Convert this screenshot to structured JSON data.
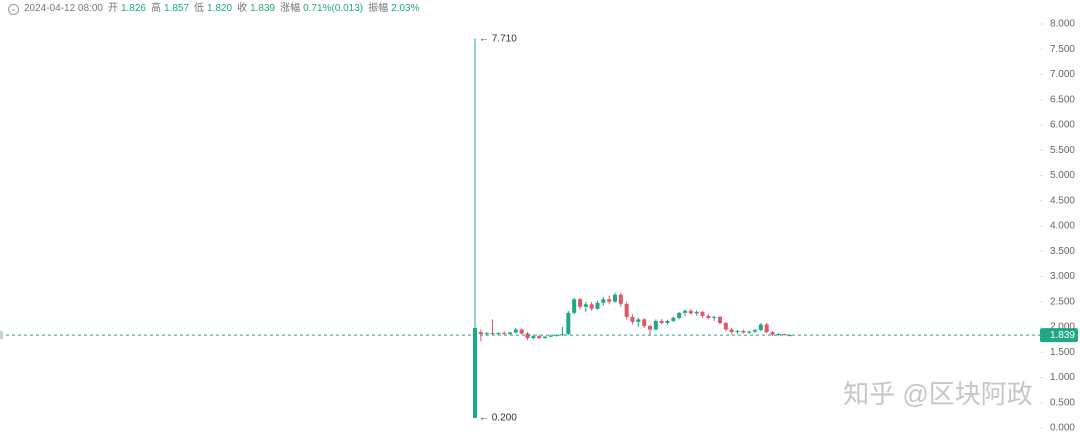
{
  "header": {
    "time": "2024-04-12 08:00",
    "fields": [
      {
        "label": "开",
        "value": "1.826"
      },
      {
        "label": "高",
        "value": "1.857"
      },
      {
        "label": "低",
        "value": "1.820"
      },
      {
        "label": "收",
        "value": "1.839"
      },
      {
        "label": "涨幅",
        "value": "0.71%(0.013)"
      },
      {
        "label": "振幅",
        "value": "2.03%"
      }
    ]
  },
  "watermark": "知乎 @区块阿政",
  "chart_data": {
    "type": "candlestick",
    "up_color": "#1fa886",
    "down_color": "#e2566a",
    "open": [
      0.2,
      1.9,
      1.86,
      1.88,
      1.87,
      1.88,
      1.86,
      1.89,
      1.95,
      1.87,
      1.78,
      1.82,
      1.78,
      1.81,
      1.83,
      1.84,
      1.86,
      2.28,
      2.55,
      2.4,
      2.45,
      2.36,
      2.48,
      2.55,
      2.5,
      2.64,
      2.46,
      2.2,
      2.1,
      2.15,
      2.02,
      1.95,
      2.12,
      2.08,
      2.12,
      2.18,
      2.28,
      2.32,
      2.27,
      2.3,
      2.22,
      2.18,
      2.2,
      2.08,
      1.95,
      1.9,
      1.92,
      1.89,
      1.91,
      1.94,
      2.05,
      1.9,
      1.85,
      1.86,
      1.826
    ],
    "high": [
      7.71,
      1.95,
      1.9,
      2.15,
      1.9,
      1.92,
      1.9,
      1.98,
      1.97,
      1.9,
      1.85,
      1.84,
      1.82,
      1.85,
      1.86,
      2.0,
      2.32,
      2.58,
      2.58,
      2.5,
      2.5,
      2.52,
      2.6,
      2.62,
      2.68,
      2.68,
      2.5,
      2.25,
      2.18,
      2.18,
      2.05,
      2.15,
      2.16,
      2.14,
      2.2,
      2.3,
      2.35,
      2.36,
      2.33,
      2.32,
      2.26,
      2.22,
      2.22,
      2.1,
      1.98,
      1.94,
      1.95,
      1.93,
      1.96,
      2.08,
      2.08,
      1.92,
      1.88,
      1.87,
      1.857
    ],
    "low": [
      0.2,
      1.72,
      1.82,
      1.85,
      1.84,
      1.85,
      1.84,
      1.87,
      1.85,
      1.74,
      1.75,
      1.76,
      1.77,
      1.79,
      1.81,
      1.82,
      1.84,
      2.25,
      2.35,
      2.3,
      2.32,
      2.34,
      2.42,
      2.45,
      2.48,
      2.4,
      2.15,
      2.05,
      2.0,
      1.98,
      1.85,
      1.93,
      2.05,
      2.05,
      2.1,
      2.15,
      2.22,
      2.24,
      2.22,
      2.18,
      2.15,
      2.12,
      2.05,
      1.92,
      1.86,
      1.86,
      1.87,
      1.86,
      1.88,
      1.92,
      1.88,
      1.82,
      1.82,
      1.83,
      1.82
    ],
    "close": [
      1.98,
      1.86,
      1.88,
      1.87,
      1.88,
      1.86,
      1.89,
      1.95,
      1.87,
      1.78,
      1.82,
      1.78,
      1.81,
      1.83,
      1.84,
      1.86,
      2.28,
      2.55,
      2.4,
      2.45,
      2.36,
      2.48,
      2.55,
      2.5,
      2.64,
      2.46,
      2.2,
      2.1,
      2.15,
      2.02,
      1.95,
      2.12,
      2.08,
      2.12,
      2.18,
      2.28,
      2.32,
      2.27,
      2.3,
      2.22,
      2.18,
      2.2,
      2.08,
      1.95,
      1.9,
      1.92,
      1.89,
      1.91,
      1.94,
      2.05,
      1.9,
      1.85,
      1.86,
      1.84,
      1.839
    ],
    "ylim": [
      0,
      8
    ],
    "yticks": [
      {
        "value": 0,
        "label": "0.000"
      },
      {
        "value": 0.5,
        "label": "0.500"
      },
      {
        "value": 1,
        "label": "1.000"
      },
      {
        "value": 1.5,
        "label": "1.500"
      },
      {
        "value": 2,
        "label": "2.000"
      },
      {
        "value": 2.5,
        "label": "2.500"
      },
      {
        "value": 3,
        "label": "3.000"
      },
      {
        "value": 3.5,
        "label": "3.500"
      },
      {
        "value": 4,
        "label": "4.000"
      },
      {
        "value": 4.5,
        "label": "4.500"
      },
      {
        "value": 5,
        "label": "5.000"
      },
      {
        "value": 5.5,
        "label": "5.500"
      },
      {
        "value": 6,
        "label": "6.000"
      },
      {
        "value": 6.5,
        "label": "6.500"
      },
      {
        "value": 7,
        "label": "7.000"
      },
      {
        "value": 7.5,
        "label": "7.500"
      },
      {
        "value": 8,
        "label": "8.000"
      }
    ],
    "annotations": [
      {
        "value": 7.71,
        "label": "← 7.710"
      },
      {
        "value": 0.2,
        "label": "← 0.200"
      }
    ],
    "last_price": {
      "value": 1.839,
      "label": "1.839"
    }
  }
}
